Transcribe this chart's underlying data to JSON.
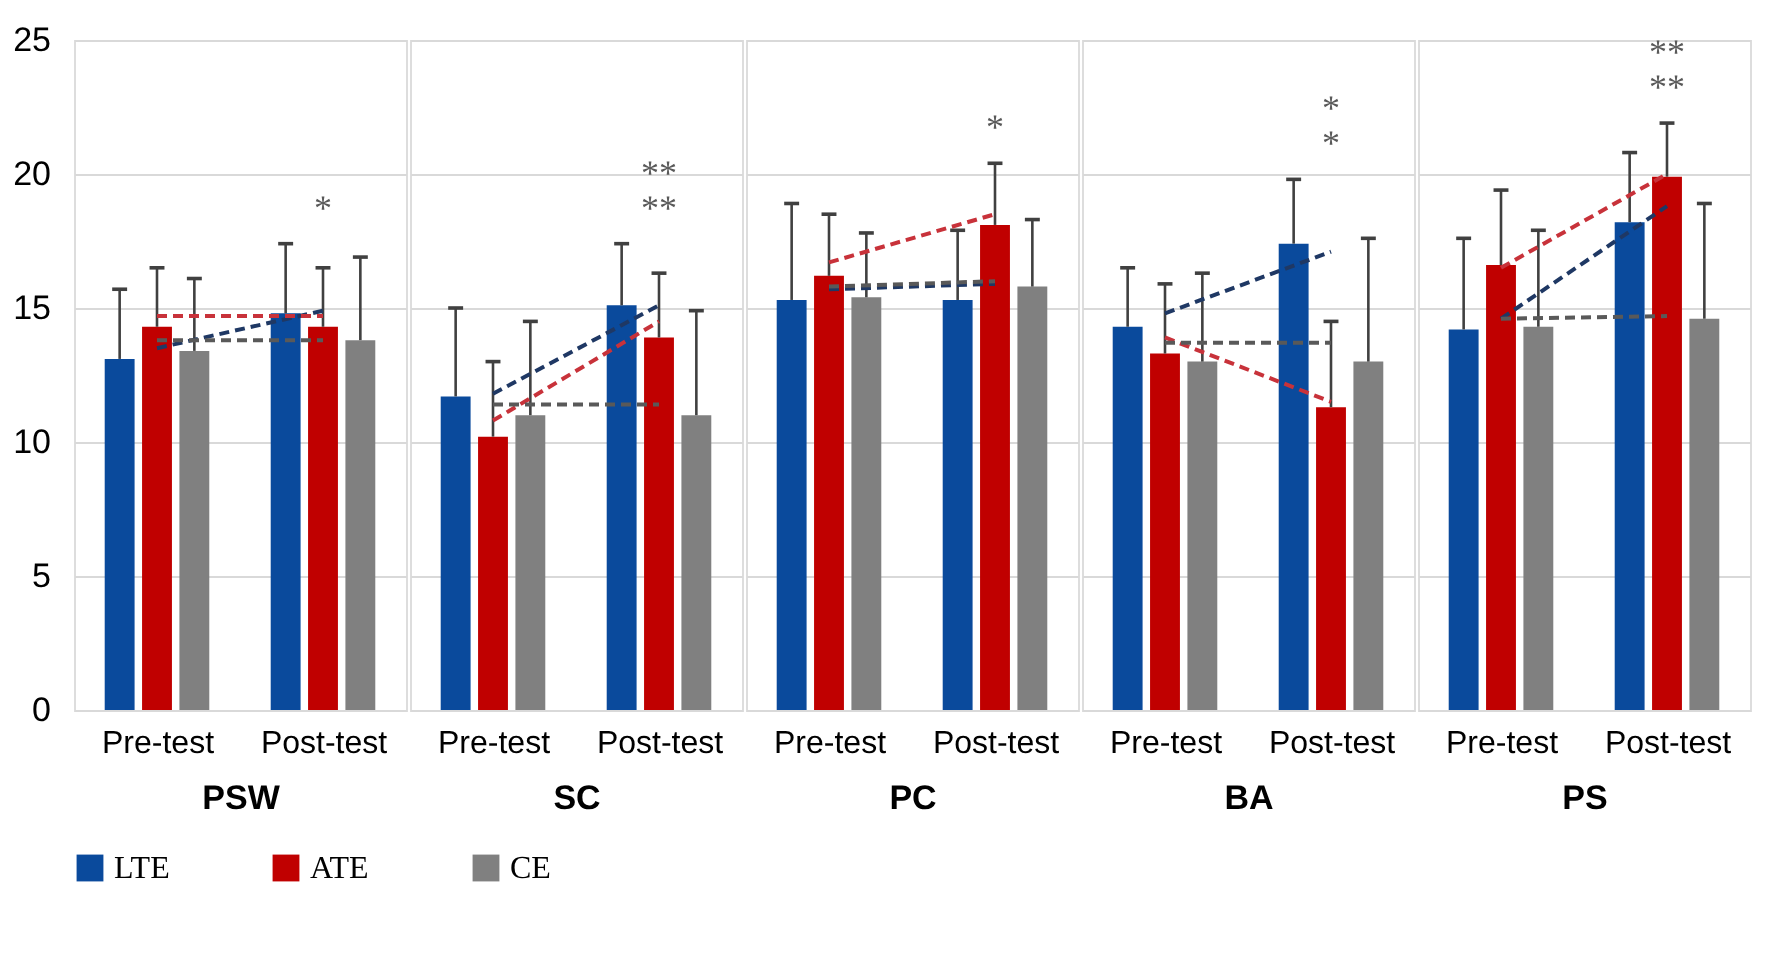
{
  "chart_data": [
    {
      "type": "bar",
      "xlabel": "PSW",
      "categories": [
        "Pre-test",
        "Post-test"
      ],
      "ylim": [
        0,
        25
      ],
      "yticks": [
        0,
        5,
        10,
        15,
        20,
        25
      ],
      "grid": "y",
      "legend": "bottom",
      "series": [
        {
          "name": "LTE",
          "color": "#0a4a9c",
          "values": [
            13.1,
            14.8
          ],
          "errors": [
            [
              13.1,
              15.7
            ],
            [
              14.8,
              17.4
            ]
          ]
        },
        {
          "name": "ATE",
          "color": "#c00000",
          "values": [
            14.3,
            14.3
          ],
          "errors": [
            [
              14.3,
              16.5
            ],
            [
              14.3,
              16.5
            ]
          ]
        },
        {
          "name": "CE",
          "color": "#808080",
          "values": [
            13.4,
            13.8
          ],
          "errors": [
            [
              13.4,
              16.1
            ],
            [
              13.8,
              16.9
            ]
          ]
        },
        {
          "type": "line",
          "line_style": "dashed",
          "color": "#1f3864",
          "values": [
            13.5,
            14.9
          ]
        },
        {
          "type": "line",
          "line_style": "dashed",
          "color": "#c8323a",
          "values": [
            14.7,
            14.7
          ]
        },
        {
          "type": "line",
          "line_style": "dashed",
          "color": "#595959",
          "values": [
            13.8,
            13.8
          ]
        }
      ],
      "annotations": [
        "*"
      ]
    },
    {
      "type": "bar",
      "xlabel": "SC",
      "categories": [
        "Pre-test",
        "Post-test"
      ],
      "ylim": [
        0,
        25
      ],
      "yticks": [
        0,
        5,
        10,
        15,
        20,
        25
      ],
      "grid": "y",
      "tick_labels": "x",
      "series": [
        {
          "color": "#0a4a9c",
          "values": [
            11.7,
            15.1
          ],
          "errors": [
            [
              11.7,
              15.0
            ],
            [
              15.1,
              17.4
            ]
          ]
        },
        {
          "color": "#c00000",
          "values": [
            10.2,
            13.9
          ],
          "errors": [
            [
              10.2,
              13.0
            ],
            [
              13.9,
              16.3
            ]
          ]
        },
        {
          "color": "#808080",
          "values": [
            11.0,
            11.0
          ],
          "errors": [
            [
              11.0,
              14.5
            ],
            [
              11.0,
              14.9
            ]
          ]
        },
        {
          "type": "line",
          "line_style": "dashed",
          "color": "#1f3864",
          "values": [
            11.8,
            15.1
          ]
        },
        {
          "type": "line",
          "line_style": "dashed",
          "color": "#c8323a",
          "values": [
            10.8,
            14.5
          ]
        },
        {
          "type": "line",
          "line_style": "dashed",
          "color": "#595959",
          "values": [
            11.4,
            11.4
          ]
        }
      ],
      "annotations": [
        "**",
        "**"
      ]
    },
    {
      "type": "bar",
      "xlabel": "PC",
      "categories": [
        "Pre-test",
        "Post-test"
      ],
      "ylim": [
        0,
        25
      ],
      "yticks": [
        0,
        5,
        10,
        15,
        20,
        25
      ],
      "grid": "y",
      "tick_labels": "x",
      "series": [
        {
          "color": "#0a4a9c",
          "values": [
            15.3,
            15.3
          ],
          "errors": [
            [
              15.3,
              18.9
            ],
            [
              15.3,
              17.9
            ]
          ]
        },
        {
          "color": "#c00000",
          "values": [
            16.2,
            18.1
          ],
          "errors": [
            [
              16.2,
              18.5
            ],
            [
              18.1,
              20.4
            ]
          ]
        },
        {
          "color": "#808080",
          "values": [
            15.4,
            15.8
          ],
          "errors": [
            [
              15.4,
              17.8
            ],
            [
              15.8,
              18.3
            ]
          ]
        },
        {
          "type": "line",
          "line_style": "dashed",
          "color": "#1f3864",
          "values": [
            15.7,
            15.9
          ]
        },
        {
          "type": "line",
          "line_style": "dashed",
          "color": "#c8323a",
          "values": [
            16.7,
            18.5
          ]
        },
        {
          "type": "line",
          "line_style": "dashed",
          "color": "#595959",
          "values": [
            15.8,
            16.0
          ]
        }
      ],
      "annotations": [
        "*"
      ]
    },
    {
      "type": "bar",
      "xlabel": "BA",
      "categories": [
        "Pre-test",
        "Post-test"
      ],
      "ylim": [
        0,
        25
      ],
      "yticks": [
        0,
        5,
        10,
        15,
        20,
        25
      ],
      "grid": "y",
      "tick_labels": "x",
      "series": [
        {
          "color": "#0a4a9c",
          "values": [
            14.3,
            17.4
          ],
          "errors": [
            [
              14.3,
              16.5
            ],
            [
              17.4,
              19.8
            ]
          ]
        },
        {
          "color": "#c00000",
          "values": [
            13.3,
            11.3
          ],
          "errors": [
            [
              13.3,
              15.9
            ],
            [
              11.3,
              14.5
            ]
          ]
        },
        {
          "color": "#808080",
          "values": [
            13.0,
            13.0
          ],
          "errors": [
            [
              13.0,
              16.3
            ],
            [
              13.0,
              17.6
            ]
          ]
        },
        {
          "type": "line",
          "line_style": "dashed",
          "color": "#1f3864",
          "values": [
            14.8,
            17.1
          ]
        },
        {
          "type": "line",
          "line_style": "dashed",
          "color": "#c8323a",
          "values": [
            13.9,
            11.5
          ]
        },
        {
          "type": "line",
          "line_style": "dashed",
          "color": "#595959",
          "values": [
            13.7,
            13.7
          ]
        }
      ],
      "annotations": [
        "*",
        "*"
      ]
    },
    {
      "type": "bar",
      "xlabel": "PS",
      "categories": [
        "Pre-test",
        "Post-test"
      ],
      "ylim": [
        0,
        25
      ],
      "yticks": [
        0,
        5,
        10,
        15,
        20,
        25
      ],
      "grid": "y",
      "tick_labels": "x",
      "series": [
        {
          "color": "#0a4a9c",
          "values": [
            14.2,
            18.2
          ],
          "errors": [
            [
              14.2,
              17.6
            ],
            [
              18.2,
              20.8
            ]
          ]
        },
        {
          "color": "#c00000",
          "values": [
            16.6,
            19.9
          ],
          "errors": [
            [
              16.6,
              19.4
            ],
            [
              19.9,
              21.9
            ]
          ]
        },
        {
          "color": "#808080",
          "values": [
            14.3,
            14.6
          ],
          "errors": [
            [
              14.3,
              17.9
            ],
            [
              14.6,
              18.9
            ]
          ]
        },
        {
          "type": "line",
          "line_style": "dashed",
          "color": "#1f3864",
          "values": [
            14.6,
            18.8
          ]
        },
        {
          "type": "line",
          "line_style": "dashed",
          "color": "#c8323a",
          "values": [
            16.5,
            20.0
          ]
        },
        {
          "type": "line",
          "line_style": "dashed",
          "color": "#595959",
          "values": [
            14.6,
            14.7
          ]
        }
      ],
      "annotations": [
        "**",
        "**"
      ]
    }
  ]
}
